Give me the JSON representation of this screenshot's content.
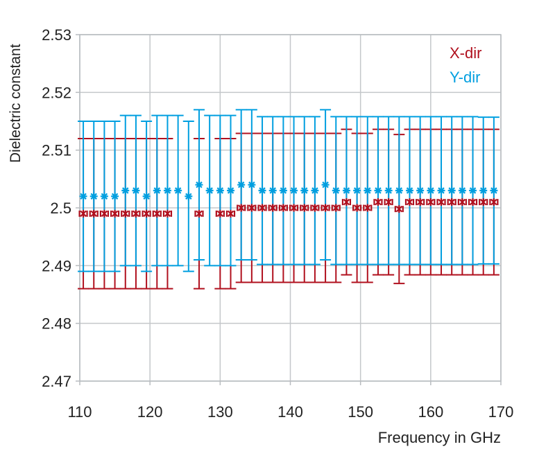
{
  "chart_data": {
    "type": "scatter",
    "title": "",
    "xlabel": "Frequency in GHz",
    "ylabel": "Dielectric constant",
    "xlim": [
      110,
      170
    ],
    "ylim": [
      2.47,
      2.53
    ],
    "xticks": [
      "110",
      "120",
      "130",
      "140",
      "150",
      "160",
      "170"
    ],
    "yticks": [
      "2.47",
      "2.48",
      "2.49",
      "2.5",
      "2.51",
      "2.52",
      "2.53"
    ],
    "grid": true,
    "legend_position": "top-right",
    "x": [
      110.5,
      112,
      113.5,
      115,
      116.5,
      118,
      119.5,
      121,
      122.5,
      124,
      125.5,
      127,
      128.5,
      130,
      131.5,
      133,
      134.5,
      136,
      137.5,
      139,
      140.5,
      142,
      143.5,
      145,
      146.5,
      148,
      149.5,
      151,
      152.5,
      154,
      155.5,
      157,
      158.5,
      160,
      161.5,
      163,
      164.5,
      166,
      167.5,
      169
    ],
    "series": [
      {
        "name": "X-dir",
        "color": "#b0101e",
        "values": [
          2.499,
          2.499,
          2.499,
          2.499,
          2.499,
          2.499,
          2.499,
          2.499,
          2.499,
          null,
          null,
          2.499,
          null,
          2.499,
          2.499,
          2.5,
          2.5,
          2.5,
          2.5,
          2.5,
          2.5,
          2.5,
          2.5,
          2.5,
          2.5,
          2.501,
          2.5,
          2.5,
          2.501,
          2.501,
          2.4998,
          2.501,
          2.501,
          2.501,
          2.501,
          2.501,
          2.501,
          2.501,
          2.501,
          2.501
        ],
        "error": [
          0.013,
          0.013,
          0.013,
          0.013,
          0.013,
          0.013,
          0.013,
          0.013,
          0.013,
          null,
          null,
          0.013,
          null,
          0.013,
          0.013,
          0.0129,
          0.0129,
          0.0129,
          0.0129,
          0.0129,
          0.0129,
          0.0129,
          0.0129,
          0.0129,
          0.0129,
          0.0126,
          0.0129,
          0.0129,
          0.0126,
          0.0126,
          0.0129,
          0.0126,
          0.0126,
          0.0126,
          0.0126,
          0.0126,
          0.0126,
          0.0126,
          0.0126,
          0.0126
        ]
      },
      {
        "name": "Y-dir",
        "color": "#009fe0",
        "values": [
          2.502,
          2.502,
          2.502,
          2.502,
          2.503,
          2.503,
          2.502,
          2.503,
          2.503,
          2.503,
          2.502,
          2.504,
          2.503,
          2.503,
          2.503,
          2.504,
          2.504,
          2.503,
          2.503,
          2.503,
          2.503,
          2.503,
          2.503,
          2.504,
          2.503,
          2.503,
          2.503,
          2.503,
          2.503,
          2.503,
          2.503,
          2.503,
          2.503,
          2.503,
          2.503,
          2.503,
          2.503,
          2.503,
          2.503,
          2.503
        ],
        "error": [
          0.013,
          0.013,
          0.013,
          0.013,
          0.013,
          0.013,
          0.013,
          0.013,
          0.013,
          0.013,
          0.013,
          0.013,
          0.013,
          0.013,
          0.013,
          0.013,
          0.013,
          0.0128,
          0.0128,
          0.0128,
          0.0128,
          0.0128,
          0.0128,
          0.013,
          0.0128,
          0.0128,
          0.0128,
          0.0128,
          0.0128,
          0.0128,
          0.0128,
          0.0128,
          0.0128,
          0.0128,
          0.0128,
          0.0128,
          0.0128,
          0.0128,
          0.0127,
          0.0127
        ]
      }
    ]
  }
}
